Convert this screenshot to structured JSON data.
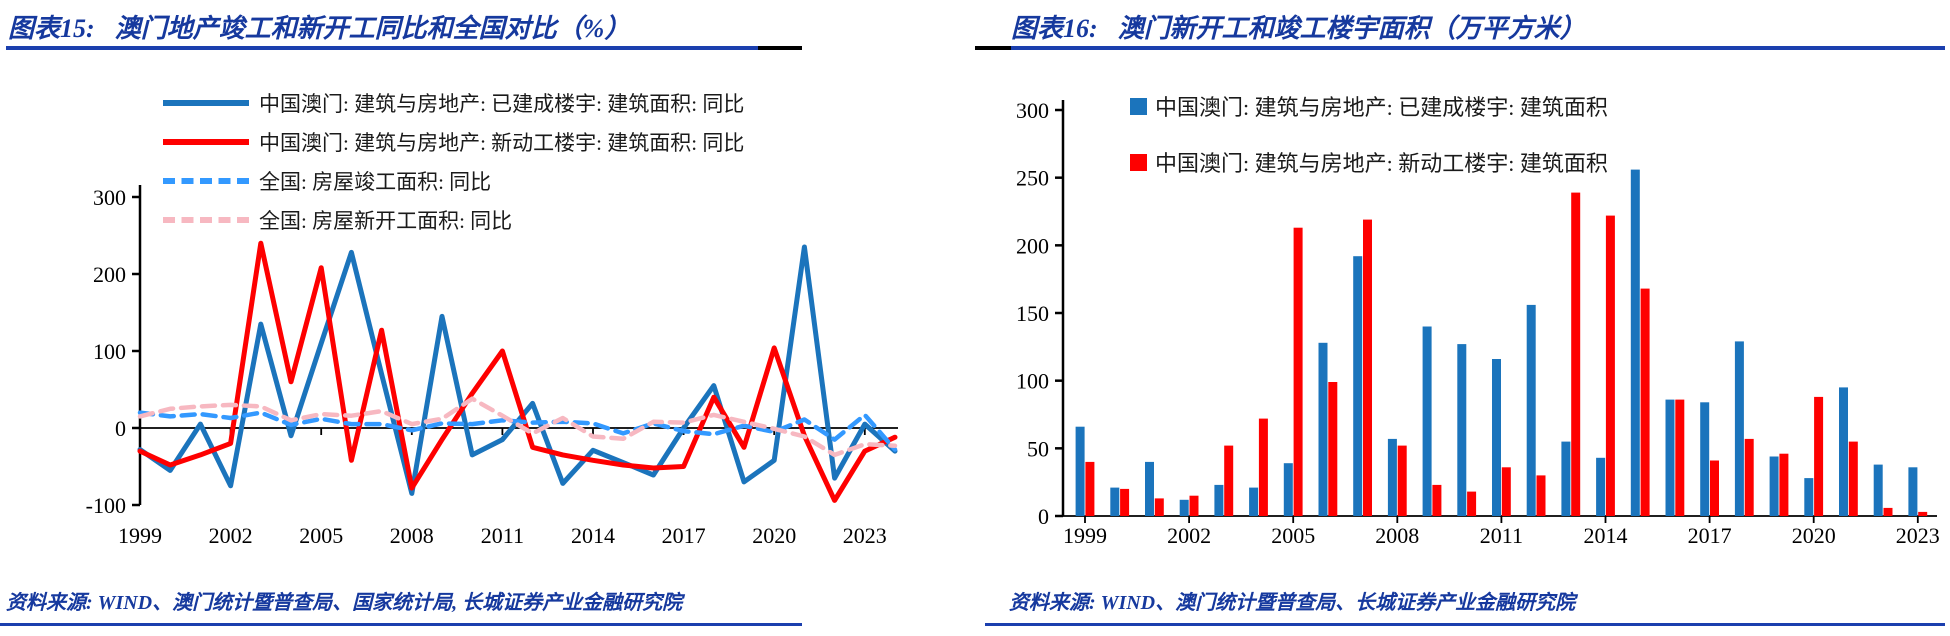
{
  "colors": {
    "title_blue": "#16399e",
    "rule_blue": "#1b3fae",
    "macau_completed_blue": "#1B74BC",
    "macau_starts_red": "#FE0000",
    "national_completed_blue": "#3399FF",
    "national_starts_pink": "#F7B8C1",
    "axis_black": "#000000"
  },
  "left_chart": {
    "title_label": "图表15:",
    "title_text": "澳门地产竣工和新开工同比和全国对比（%）",
    "source": "资料来源: WIND、澳门统计暨普查局、国家统计局, 长城证券产业金融研究院",
    "chart_data": {
      "type": "line",
      "x_start_year": 1999,
      "x": [
        1999,
        2000,
        2001,
        2002,
        2003,
        2004,
        2005,
        2006,
        2007,
        2008,
        2009,
        2010,
        2011,
        2012,
        2013,
        2014,
        2015,
        2016,
        2017,
        2018,
        2019,
        2020,
        2021,
        2022,
        2023,
        2024
      ],
      "x_tick_labels": [
        "1999",
        "2002",
        "2005",
        "2008",
        "2011",
        "2014",
        "2017",
        "2020",
        "2023"
      ],
      "y_ticks": [
        300,
        200,
        100,
        0,
        -100
      ],
      "ylim": [
        -100,
        300
      ],
      "grid": false,
      "legend_position": "top-left",
      "series": [
        {
          "name": "中国澳门: 建筑与房地产: 已建成楼宇: 建筑面积: 同比",
          "color": "#1B74BC",
          "style": "solid",
          "values": [
            -28,
            -55,
            5,
            -75,
            135,
            -10,
            110,
            228,
            70,
            -85,
            145,
            -35,
            -15,
            32,
            -72,
            -29,
            -45,
            -61,
            0,
            55,
            -70,
            -42,
            235,
            -65,
            5,
            -30
          ]
        },
        {
          "name": "中国澳门: 建筑与房地产: 新动工楼宇: 建筑面积: 同比",
          "color": "#FE0000",
          "style": "solid",
          "values": [
            -30,
            -48,
            -35,
            -20,
            240,
            60,
            208,
            -42,
            127,
            -78,
            -15,
            45,
            100,
            -25,
            -35,
            -42,
            -48,
            -52,
            -50,
            40,
            -25,
            104,
            -10,
            -94,
            -30,
            -12
          ]
        },
        {
          "name": "全国: 房屋竣工面积: 同比",
          "color": "#3399FF",
          "style": "dashed",
          "values": [
            20,
            15,
            18,
            13,
            20,
            4,
            12,
            5,
            5,
            -3,
            6,
            5,
            10,
            7,
            8,
            6,
            -7,
            6,
            -4,
            -8,
            3,
            -5,
            11,
            -15,
            17,
            -28
          ]
        },
        {
          "name": "全国: 房屋新开工面积: 同比",
          "color": "#F7B8C1",
          "style": "dashed",
          "values": [
            15,
            25,
            28,
            30,
            28,
            10,
            18,
            16,
            22,
            5,
            12,
            38,
            16,
            -7,
            13,
            -11,
            -14,
            8,
            7,
            17,
            8,
            -1,
            -11,
            -35,
            -21,
            -23
          ]
        }
      ]
    }
  },
  "right_chart": {
    "title_label": "图表16:",
    "title_text": "澳门新开工和竣工楼宇面积（万平方米）",
    "source": "资料来源: WIND、澳门统计暨普查局、长城证券产业金融研究院",
    "chart_data": {
      "type": "bar",
      "x_start_year": 1999,
      "categories": [
        1999,
        2000,
        2001,
        2002,
        2003,
        2004,
        2005,
        2006,
        2007,
        2008,
        2009,
        2010,
        2011,
        2012,
        2013,
        2014,
        2015,
        2016,
        2017,
        2018,
        2019,
        2020,
        2021,
        2022,
        2023
      ],
      "x_tick_labels": [
        "1999",
        "2002",
        "2005",
        "2008",
        "2011",
        "2014",
        "2017",
        "2020",
        "2023"
      ],
      "y_ticks": [
        0,
        50,
        100,
        150,
        200,
        250,
        300
      ],
      "ylim": [
        0,
        300
      ],
      "grid": false,
      "legend_position": "top",
      "series": [
        {
          "name": "中国澳门: 建筑与房地产: 已建成楼宇: 建筑面积",
          "color": "#1B74BC",
          "values": [
            66,
            21,
            40,
            12,
            23,
            21,
            39,
            128,
            192,
            57,
            140,
            127,
            116,
            156,
            55,
            43,
            256,
            86,
            84,
            129,
            44,
            28,
            95,
            38,
            36
          ]
        },
        {
          "name": "中国澳门: 建筑与房地产: 新动工楼宇: 建筑面积",
          "color": "#FE0000",
          "values": [
            40,
            20,
            13,
            15,
            52,
            72,
            213,
            99,
            219,
            52,
            23,
            18,
            36,
            30,
            239,
            222,
            168,
            86,
            41,
            57,
            46,
            88,
            55,
            6,
            3
          ]
        }
      ]
    }
  }
}
